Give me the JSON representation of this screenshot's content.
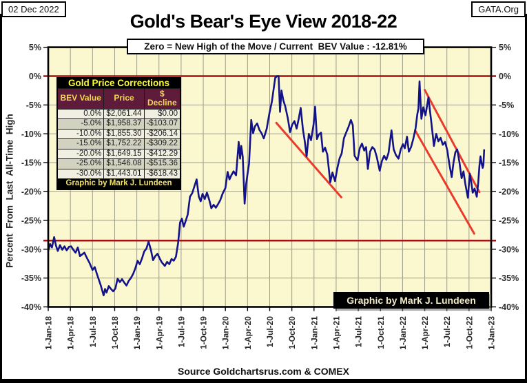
{
  "header": {
    "date_box": "02 Dec 2022",
    "org_box": "GATA.Org",
    "title": "Gold's Bear's Eye View 2018-22",
    "subtitle": "Zero = New High of the Move / Current  BEV Value : -12.81%"
  },
  "footer": {
    "source": "Source Goldchartsrus.com & COMEX"
  },
  "credit_box_label": "Graphic by Mark J. Lundeen",
  "corrections_table": {
    "title": "Gold Price Corrections",
    "headers": [
      "BEV Value",
      "Price",
      "$ Decline"
    ],
    "rows": [
      [
        "0.0%",
        "$2,061.44",
        "$0.00"
      ],
      [
        "-5.0%",
        "$1,958.37",
        "-$103.07"
      ],
      [
        "-10.0%",
        "$1,855.30",
        "-$206.14"
      ],
      [
        "-15.0%",
        "$1,752.22",
        "-$309.22"
      ],
      [
        "-20.0%",
        "$1,649.15",
        "-$412.29"
      ],
      [
        "-25.0%",
        "$1,546.08",
        "-$515.36"
      ],
      [
        "-30.0%",
        "$1,443.01",
        "-$618.43"
      ]
    ],
    "footer": "Graphic by Mark J. Lundeen"
  },
  "chart_data": {
    "type": "line",
    "title": "Gold's Bear's Eye View 2018-22",
    "xlabel": "",
    "ylabel": "Percent  From  Last  All-Time  High",
    "ylim": [
      -40,
      5
    ],
    "x_range_months": [
      0,
      60
    ],
    "grid": true,
    "x_tick_labels": [
      "1-Jan-18",
      "1-Apr-18",
      "1-Jul-18",
      "1-Oct-18",
      "1-Jan-19",
      "1-Apr-19",
      "1-Jul-19",
      "1-Oct-19",
      "1-Jan-20",
      "1-Apr-20",
      "1-Jul-20",
      "1-Oct-20",
      "1-Jan-21",
      "1-Apr-21",
      "1-Jul-21",
      "1-Oct-21",
      "1-Jan-22",
      "1-Apr-22",
      "1-Jul-22",
      "1-Oct-22",
      "1-Jan-23"
    ],
    "x_tick_months": [
      0,
      3,
      6,
      9,
      12,
      15,
      18,
      21,
      24,
      27,
      30,
      33,
      36,
      39,
      42,
      45,
      48,
      51,
      54,
      57,
      60
    ],
    "y_tick_labels": [
      "5%",
      "0%",
      "-5%",
      "-10%",
      "-15%",
      "-20%",
      "-25%",
      "-30%",
      "-35%",
      "-40%"
    ],
    "y_tick_values": [
      5,
      0,
      -5,
      -10,
      -15,
      -20,
      -25,
      -30,
      -35,
      -40
    ],
    "colors": {
      "plot_bg": "#fbf7cf",
      "grid": "#9b9b8b",
      "axis": "#000000",
      "series": "#12128a",
      "reference_line": "#a31212",
      "trend_line": "#e83b2c",
      "tick_text": "#2b2b2b"
    },
    "reference_lines": [
      {
        "label": "zero-new-high-line",
        "y": 0
      },
      {
        "label": "support-line",
        "y": -28.5
      }
    ],
    "trend_lines": [
      {
        "from": [
          30.9,
          -8.1
        ],
        "to": [
          39.7,
          -21.0
        ]
      },
      {
        "from": [
          51.0,
          -2.4
        ],
        "to": [
          58.4,
          -20.1
        ]
      },
      {
        "from": [
          49.7,
          -9.4
        ],
        "to": [
          57.7,
          -27.3
        ]
      }
    ],
    "series": [
      {
        "name": "Gold BEV (% from last all-time high)",
        "points": [
          [
            0,
            -30.3
          ],
          [
            0.25,
            -29.1
          ],
          [
            0.5,
            -29.7
          ],
          [
            0.8,
            -27.9
          ],
          [
            1.05,
            -29.4
          ],
          [
            1.3,
            -30.3
          ],
          [
            1.6,
            -29.3
          ],
          [
            1.9,
            -30.1
          ],
          [
            2.2,
            -29.5
          ],
          [
            2.5,
            -30.2
          ],
          [
            2.8,
            -29.6
          ],
          [
            3.1,
            -29.5
          ],
          [
            3.4,
            -30.1
          ],
          [
            3.7,
            -30.6
          ],
          [
            4.0,
            -29.7
          ],
          [
            4.3,
            -31.2
          ],
          [
            4.6,
            -30.9
          ],
          [
            4.9,
            -30.6
          ],
          [
            5.2,
            -31.4
          ],
          [
            5.6,
            -32.4
          ],
          [
            6.0,
            -33.6
          ],
          [
            6.3,
            -33.1
          ],
          [
            6.7,
            -34.7
          ],
          [
            7.1,
            -36.2
          ],
          [
            7.5,
            -38.0
          ],
          [
            7.7,
            -36.9
          ],
          [
            7.9,
            -37.5
          ],
          [
            8.2,
            -36.4
          ],
          [
            8.5,
            -36.9
          ],
          [
            8.8,
            -37.3
          ],
          [
            9.1,
            -36.8
          ],
          [
            9.4,
            -35.1
          ],
          [
            9.7,
            -35.7
          ],
          [
            10.0,
            -35.2
          ],
          [
            10.3,
            -35.8
          ],
          [
            10.6,
            -36.3
          ],
          [
            10.9,
            -35.5
          ],
          [
            11.2,
            -35.0
          ],
          [
            11.5,
            -34.3
          ],
          [
            11.8,
            -33.3
          ],
          [
            12.1,
            -32.0
          ],
          [
            12.4,
            -32.6
          ],
          [
            12.7,
            -31.6
          ],
          [
            13.0,
            -30.4
          ],
          [
            13.3,
            -29.9
          ],
          [
            13.6,
            -28.7
          ],
          [
            13.9,
            -30.1
          ],
          [
            14.2,
            -31.9
          ],
          [
            14.5,
            -31.2
          ],
          [
            14.8,
            -30.8
          ],
          [
            15.1,
            -31.6
          ],
          [
            15.4,
            -32.3
          ],
          [
            15.8,
            -32.9
          ],
          [
            16.1,
            -32.2
          ],
          [
            16.4,
            -32.6
          ],
          [
            16.7,
            -31.7
          ],
          [
            17.0,
            -32.0
          ],
          [
            17.3,
            -31.3
          ],
          [
            17.6,
            -28.9
          ],
          [
            17.85,
            -25.4
          ],
          [
            18.1,
            -24.7
          ],
          [
            18.35,
            -26.1
          ],
          [
            18.6,
            -25.2
          ],
          [
            18.9,
            -24.0
          ],
          [
            19.2,
            -20.9
          ],
          [
            19.5,
            -20.3
          ],
          [
            19.8,
            -19.1
          ],
          [
            20.1,
            -17.9
          ],
          [
            20.4,
            -20.9
          ],
          [
            20.65,
            -21.7
          ],
          [
            20.9,
            -20.4
          ],
          [
            21.2,
            -21.3
          ],
          [
            21.5,
            -20.2
          ],
          [
            21.8,
            -21.4
          ],
          [
            22.1,
            -22.9
          ],
          [
            22.4,
            -22.3
          ],
          [
            22.7,
            -22.8
          ],
          [
            23.0,
            -22.2
          ],
          [
            23.3,
            -21.5
          ],
          [
            23.65,
            -20.3
          ],
          [
            24.0,
            -19.4
          ],
          [
            24.3,
            -16.6
          ],
          [
            24.55,
            -17.9
          ],
          [
            24.8,
            -17.2
          ],
          [
            25.1,
            -16.5
          ],
          [
            25.45,
            -17.2
          ],
          [
            25.8,
            -11.4
          ],
          [
            26.0,
            -14.3
          ],
          [
            26.15,
            -12.1
          ],
          [
            26.35,
            -14.0
          ],
          [
            26.6,
            -22.1
          ],
          [
            26.8,
            -18.8
          ],
          [
            27.0,
            -16.9
          ],
          [
            27.2,
            -15.2
          ],
          [
            27.5,
            -7.6
          ],
          [
            27.75,
            -9.9
          ],
          [
            28.0,
            -8.7
          ],
          [
            28.3,
            -8.2
          ],
          [
            28.6,
            -9.3
          ],
          [
            28.9,
            -9.9
          ],
          [
            29.2,
            -10.8
          ],
          [
            29.6,
            -9.1
          ],
          [
            29.95,
            -6.5
          ],
          [
            30.3,
            -4.4
          ],
          [
            30.75,
            -0.3
          ],
          [
            31.0,
            0.0
          ],
          [
            31.2,
            0.0
          ],
          [
            31.4,
            -6.2
          ],
          [
            31.6,
            -2.5
          ],
          [
            31.85,
            -4.2
          ],
          [
            32.1,
            -5.2
          ],
          [
            32.45,
            -7.3
          ],
          [
            32.75,
            -9.7
          ],
          [
            33.05,
            -8.4
          ],
          [
            33.35,
            -7.8
          ],
          [
            33.65,
            -9.1
          ],
          [
            33.95,
            -7.3
          ],
          [
            34.2,
            -5.5
          ],
          [
            34.5,
            -9.2
          ],
          [
            34.75,
            -11.3
          ],
          [
            35.0,
            -13.9
          ],
          [
            35.3,
            -10.0
          ],
          [
            35.6,
            -11.1
          ],
          [
            35.95,
            -8.3
          ],
          [
            36.15,
            -5.3
          ],
          [
            36.4,
            -10.9
          ],
          [
            36.65,
            -10.1
          ],
          [
            36.95,
            -9.8
          ],
          [
            37.2,
            -13.1
          ],
          [
            37.5,
            -12.4
          ],
          [
            37.8,
            -13.6
          ],
          [
            38.2,
            -18.4
          ],
          [
            38.5,
            -16.7
          ],
          [
            38.85,
            -18.2
          ],
          [
            39.15,
            -16.0
          ],
          [
            39.45,
            -14.3
          ],
          [
            39.75,
            -13.4
          ],
          [
            40.05,
            -10.8
          ],
          [
            40.35,
            -9.8
          ],
          [
            40.65,
            -8.9
          ],
          [
            41.0,
            -7.6
          ],
          [
            41.25,
            -8.5
          ],
          [
            41.5,
            -13.8
          ],
          [
            41.9,
            -14.6
          ],
          [
            42.2,
            -12.5
          ],
          [
            42.5,
            -11.7
          ],
          [
            42.8,
            -12.9
          ],
          [
            43.05,
            -12.3
          ],
          [
            43.3,
            -16.1
          ],
          [
            43.6,
            -13.1
          ],
          [
            43.9,
            -12.3
          ],
          [
            44.2,
            -12.7
          ],
          [
            44.5,
            -14.0
          ],
          [
            44.9,
            -16.4
          ],
          [
            45.2,
            -14.7
          ],
          [
            45.5,
            -13.8
          ],
          [
            45.8,
            -14.5
          ],
          [
            46.1,
            -13.3
          ],
          [
            46.5,
            -9.4
          ],
          [
            46.8,
            -12.7
          ],
          [
            47.1,
            -13.7
          ],
          [
            47.45,
            -14.3
          ],
          [
            47.75,
            -12.7
          ],
          [
            48.05,
            -11.8
          ],
          [
            48.3,
            -12.5
          ],
          [
            48.6,
            -10.5
          ],
          [
            48.85,
            -13.1
          ],
          [
            49.15,
            -12.3
          ],
          [
            49.45,
            -10.9
          ],
          [
            49.75,
            -9.1
          ],
          [
            50.0,
            -6.6
          ],
          [
            50.15,
            -5.6
          ],
          [
            50.3,
            -0.9
          ],
          [
            50.55,
            -7.4
          ],
          [
            50.8,
            -5.4
          ],
          [
            51.1,
            -6.8
          ],
          [
            51.5,
            -3.7
          ],
          [
            51.9,
            -8.1
          ],
          [
            52.25,
            -12.1
          ],
          [
            52.55,
            -10.0
          ],
          [
            52.85,
            -11.3
          ],
          [
            53.15,
            -10.7
          ],
          [
            53.45,
            -11.9
          ],
          [
            53.75,
            -11.4
          ],
          [
            54.05,
            -12.8
          ],
          [
            54.35,
            -15.4
          ],
          [
            54.65,
            -17.5
          ],
          [
            54.9,
            -15.0
          ],
          [
            55.15,
            -13.2
          ],
          [
            55.4,
            -12.7
          ],
          [
            55.7,
            -14.9
          ],
          [
            56.0,
            -17.7
          ],
          [
            56.25,
            -16.5
          ],
          [
            56.5,
            -18.7
          ],
          [
            56.85,
            -21.1
          ],
          [
            57.1,
            -16.9
          ],
          [
            57.3,
            -18.4
          ],
          [
            57.5,
            -20.2
          ],
          [
            57.75,
            -19.5
          ],
          [
            58.05,
            -20.9
          ],
          [
            58.25,
            -18.5
          ],
          [
            58.4,
            -15.6
          ],
          [
            58.55,
            -13.9
          ],
          [
            58.7,
            -15.1
          ],
          [
            58.85,
            -15.9
          ],
          [
            58.95,
            -15.4
          ],
          [
            59.05,
            -12.81
          ]
        ]
      }
    ],
    "current_bev_value": "-12.81%"
  }
}
